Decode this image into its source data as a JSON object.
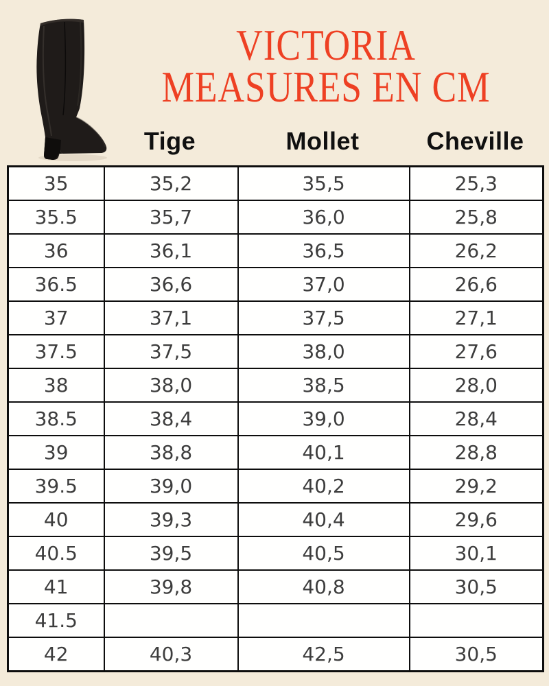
{
  "page": {
    "background_color": "#f4ebda",
    "title_color": "#ee4023",
    "title_line1": "VICTORIA",
    "title_line2": "MEASURES EN CM"
  },
  "boot": {
    "description": "black-knee-high-heeled-boot",
    "color": "#1f1b19"
  },
  "table": {
    "col_headers": [
      "Tige",
      "Mollet",
      "Cheville"
    ],
    "col_names": [
      "size",
      "tige",
      "mollet",
      "cheville"
    ],
    "rows": [
      [
        "35",
        "35,2",
        "35,5",
        "25,3"
      ],
      [
        "35.5",
        "35,7",
        "36,0",
        "25,8"
      ],
      [
        "36",
        "36,1",
        "36,5",
        "26,2"
      ],
      [
        "36.5",
        "36,6",
        "37,0",
        "26,6"
      ],
      [
        "37",
        "37,1",
        "37,5",
        "27,1"
      ],
      [
        "37.5",
        "37,5",
        "38,0",
        "27,6"
      ],
      [
        "38",
        "38,0",
        "38,5",
        "28,0"
      ],
      [
        "38.5",
        "38,4",
        "39,0",
        "28,4"
      ],
      [
        "39",
        "38,8",
        "40,1",
        "28,8"
      ],
      [
        "39.5",
        "39,0",
        "40,2",
        "29,2"
      ],
      [
        "40",
        "39,3",
        "40,4",
        "29,6"
      ],
      [
        "40.5",
        "39,5",
        "40,5",
        "30,1"
      ],
      [
        "41",
        "39,8",
        "40,8",
        "30,5"
      ],
      [
        "41.5",
        "",
        "",
        ""
      ],
      [
        "42",
        "40,3",
        "42,5",
        "30,5"
      ]
    ]
  }
}
